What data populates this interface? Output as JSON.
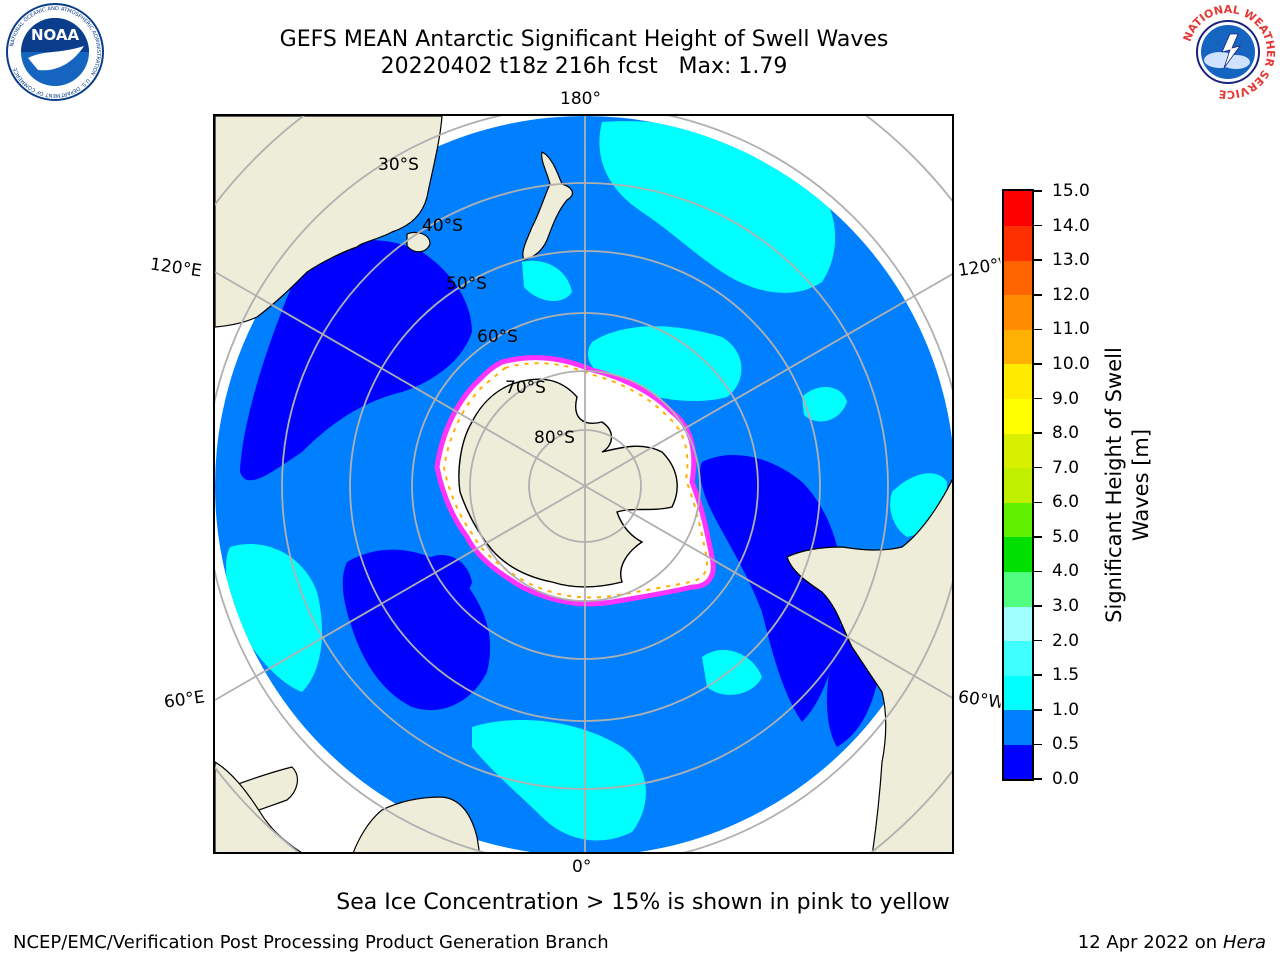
{
  "header": {
    "title_line1": "GEFS MEAN Antarctic Significant Height of Swell Waves",
    "title_line2": "20220402 t18z 216h fcst   Max: 1.79"
  },
  "logos": {
    "left": "NOAA",
    "left_ring_text": "NATIONAL OCEANIC AND ATMOSPHERIC ADMINISTRATION · U.S. DEPARTMENT OF COMMERCE",
    "right_ring_text": "NATIONAL WEATHER SERVICE"
  },
  "map": {
    "projection": "south-polar-stereographic",
    "longitude_labels": {
      "top": "180°",
      "bottom": "0°",
      "upper_left": "120°E",
      "upper_right": "120°W",
      "lower_left": "60°E",
      "lower_right": "60°W"
    },
    "latitude_labels": [
      "30°S",
      "40°S",
      "50°S",
      "60°S",
      "70°S",
      "80°S"
    ],
    "colors": {
      "land": "#eeedda",
      "ocean_low": "#0000ff",
      "ocean_mid": "#0080ff",
      "ocean_high": "#00ffff",
      "ice_white": "#ffffff",
      "ice_edge_pink": "#ff33ff",
      "graticule": "#b0b0b0"
    }
  },
  "colorbar": {
    "label": "Significant Height of Swell Waves [m]",
    "ticks": [
      "15.0",
      "14.0",
      "13.0",
      "12.0",
      "11.0",
      "10.0",
      "9.0",
      "8.0",
      "7.0",
      "6.0",
      "5.0",
      "4.0",
      "3.0",
      "2.0",
      "1.5",
      "1.0",
      "0.5",
      "0.0"
    ],
    "segments": [
      {
        "from": 0.0,
        "to": 0.5,
        "color": "#0000ff"
      },
      {
        "from": 0.5,
        "to": 1.0,
        "color": "#0080ff"
      },
      {
        "from": 1.0,
        "to": 1.5,
        "color": "#00ffff"
      },
      {
        "from": 1.5,
        "to": 2.0,
        "color": "#40ffff"
      },
      {
        "from": 2.0,
        "to": 3.0,
        "color": "#a0ffff"
      },
      {
        "from": 3.0,
        "to": 4.0,
        "color": "#50ff80"
      },
      {
        "from": 4.0,
        "to": 5.0,
        "color": "#00e000"
      },
      {
        "from": 5.0,
        "to": 6.0,
        "color": "#60f000"
      },
      {
        "from": 6.0,
        "to": 7.0,
        "color": "#c0f000"
      },
      {
        "from": 7.0,
        "to": 8.0,
        "color": "#d8f000"
      },
      {
        "from": 8.0,
        "to": 9.0,
        "color": "#ffff00"
      },
      {
        "from": 9.0,
        "to": 10.0,
        "color": "#ffea00"
      },
      {
        "from": 10.0,
        "to": 11.0,
        "color": "#ffb000"
      },
      {
        "from": 11.0,
        "to": 12.0,
        "color": "#ff8c00"
      },
      {
        "from": 12.0,
        "to": 13.0,
        "color": "#ff6400"
      },
      {
        "from": 13.0,
        "to": 14.0,
        "color": "#ff3000"
      },
      {
        "from": 14.0,
        "to": 15.0,
        "color": "#ff0000"
      }
    ]
  },
  "caption": "Sea Ice Concentration > 15% is shown in pink to yellow",
  "footer": {
    "left": "NCEP/EMC/Verification Post Processing Product Generation Branch",
    "right_prefix": "12 Apr 2022 on ",
    "right_machine": "Hera"
  }
}
